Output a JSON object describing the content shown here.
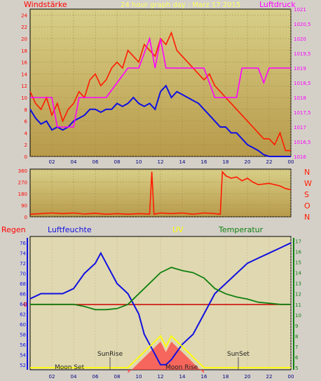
{
  "colors": {
    "frame": "#d4d0c8",
    "plot_top": "#d8cf88",
    "plot_bottom": "#b89a4a",
    "bottom_bg": "#e0d8b0",
    "wind_gust": "#ff1a00",
    "wind_avg": "#1010e0",
    "pressure": "#ff00ff",
    "direction": "#ff1a00",
    "humidity": "#1010e0",
    "temperature": "#108010",
    "uv": "#ffff00",
    "rain": "#cc0000",
    "solar": "#ff4040",
    "axis_left_top": "#ff0000",
    "axis_right_top": "#ff00ff",
    "axis_left_bottom": "#1010e0",
    "axis_right_bottom": "#108010"
  },
  "header": {
    "left_label": "Windstärke",
    "title": "24 hour graph day : Marz 17 2015",
    "right_label": "Luftdruck"
  },
  "lower_header": {
    "rain": "Regen",
    "humidity": "Luftfeuchte",
    "uv": "UV",
    "temperature": "Temperatur"
  },
  "direction_letters": [
    "N",
    "W",
    "S",
    "O",
    "N"
  ],
  "annotations": {
    "moon_set": "Moon Set",
    "sun_rise": "SunRise",
    "moon_rise": "Moon Rise",
    "sun_set": "SunSet"
  },
  "chart_data": [
    {
      "type": "line",
      "name": "wind-pressure",
      "x_ticks": [
        "02",
        "04",
        "06",
        "08",
        "10",
        "12",
        "14",
        "16",
        "18",
        "20",
        "22",
        "00"
      ],
      "y_left_ticks": [
        "0",
        "2",
        "4",
        "6",
        "8",
        "10",
        "12",
        "14",
        "16",
        "18",
        "20",
        "22",
        "24"
      ],
      "y_left_range": [
        0,
        25
      ],
      "y_right_ticks": [
        "1016",
        "1016,5",
        "1017",
        "1017,5",
        "1018",
        "1018,5",
        "1019",
        "1019,5",
        "1020",
        "1020,5",
        "1021"
      ],
      "y_right_range": [
        1016,
        1021
      ],
      "series": [
        {
          "name": "gust",
          "color": "#ff1a00",
          "points": [
            [
              0,
              11
            ],
            [
              0.5,
              9
            ],
            [
              1,
              8
            ],
            [
              1.5,
              10
            ],
            [
              2,
              7
            ],
            [
              2.5,
              9
            ],
            [
              3,
              6
            ],
            [
              3.5,
              8
            ],
            [
              4,
              9
            ],
            [
              4.5,
              11
            ],
            [
              5,
              10
            ],
            [
              5.5,
              13
            ],
            [
              6,
              14
            ],
            [
              6.5,
              12
            ],
            [
              7,
              13
            ],
            [
              7.5,
              15
            ],
            [
              8,
              16
            ],
            [
              8.5,
              15
            ],
            [
              9,
              18
            ],
            [
              9.5,
              17
            ],
            [
              10,
              16
            ],
            [
              10.5,
              19
            ],
            [
              11,
              18
            ],
            [
              11.5,
              17
            ],
            [
              12,
              20
            ],
            [
              12.5,
              19
            ],
            [
              13,
              21
            ],
            [
              13.5,
              18
            ],
            [
              14,
              17
            ],
            [
              14.5,
              16
            ],
            [
              15,
              15
            ],
            [
              15.5,
              14
            ],
            [
              16,
              13
            ],
            [
              16.5,
              14
            ],
            [
              17,
              12
            ],
            [
              17.5,
              11
            ],
            [
              18,
              10
            ],
            [
              18.5,
              9
            ],
            [
              19,
              8
            ],
            [
              19.5,
              7
            ],
            [
              20,
              6
            ],
            [
              20.5,
              5
            ],
            [
              21,
              4
            ],
            [
              21.5,
              3
            ],
            [
              22,
              3
            ],
            [
              22.5,
              2
            ],
            [
              23,
              4
            ],
            [
              23.5,
              1
            ],
            [
              24,
              1
            ]
          ]
        },
        {
          "name": "avg",
          "color": "#1010e0",
          "points": [
            [
              0,
              8
            ],
            [
              0.5,
              6.5
            ],
            [
              1,
              5.5
            ],
            [
              1.5,
              6
            ],
            [
              2,
              4.5
            ],
            [
              2.5,
              5
            ],
            [
              3,
              4.5
            ],
            [
              3.5,
              5
            ],
            [
              4,
              6
            ],
            [
              4.5,
              6.5
            ],
            [
              5,
              7
            ],
            [
              5.5,
              8
            ],
            [
              6,
              8
            ],
            [
              6.5,
              7.5
            ],
            [
              7,
              8
            ],
            [
              7.5,
              8
            ],
            [
              8,
              9
            ],
            [
              8.5,
              8.5
            ],
            [
              9,
              9
            ],
            [
              9.5,
              10
            ],
            [
              10,
              9
            ],
            [
              10.5,
              8.5
            ],
            [
              11,
              9
            ],
            [
              11.5,
              8
            ],
            [
              12,
              11
            ],
            [
              12.5,
              12
            ],
            [
              13,
              10
            ],
            [
              13.5,
              11
            ],
            [
              14,
              10.5
            ],
            [
              14.5,
              10
            ],
            [
              15,
              9.5
            ],
            [
              15.5,
              9
            ],
            [
              16,
              8
            ],
            [
              16.5,
              7
            ],
            [
              17,
              6
            ],
            [
              17.5,
              5
            ],
            [
              18,
              5
            ],
            [
              18.5,
              4
            ],
            [
              19,
              4
            ],
            [
              19.5,
              3
            ],
            [
              20,
              2
            ],
            [
              20.5,
              1.5
            ],
            [
              21,
              1
            ],
            [
              21.5,
              0.3
            ],
            [
              22,
              0
            ],
            [
              22.5,
              0
            ],
            [
              23,
              0
            ],
            [
              23.5,
              0
            ],
            [
              24,
              0
            ]
          ]
        },
        {
          "name": "pressure",
          "color": "#ff00ff",
          "points": [
            [
              0,
              1018
            ],
            [
              1,
              1018
            ],
            [
              2,
              1018
            ],
            [
              2.5,
              1017
            ],
            [
              4,
              1017
            ],
            [
              4.5,
              1018
            ],
            [
              6,
              1018
            ],
            [
              7,
              1018
            ],
            [
              8,
              1018.5
            ],
            [
              9,
              1019
            ],
            [
              10,
              1019
            ],
            [
              11,
              1020
            ],
            [
              11.5,
              1019
            ],
            [
              12,
              1020
            ],
            [
              12.5,
              1019
            ],
            [
              14,
              1019
            ],
            [
              15,
              1019
            ],
            [
              16,
              1019
            ],
            [
              17,
              1018
            ],
            [
              18,
              1018
            ],
            [
              19,
              1018
            ],
            [
              19.5,
              1019
            ],
            [
              20,
              1019
            ],
            [
              21,
              1019
            ],
            [
              21.5,
              1018.5
            ],
            [
              22,
              1019
            ],
            [
              24,
              1019
            ]
          ]
        }
      ]
    },
    {
      "type": "line",
      "name": "wind-direction",
      "y_ticks": [
        "360",
        "270",
        "180",
        "90",
        "0"
      ],
      "y_range": [
        0,
        360
      ],
      "series": [
        {
          "name": "direction",
          "color": "#ff1a00",
          "points": [
            [
              0,
              20
            ],
            [
              1,
              25
            ],
            [
              2,
              30
            ],
            [
              3,
              25
            ],
            [
              4,
              30
            ],
            [
              5,
              22
            ],
            [
              6,
              28
            ],
            [
              7,
              20
            ],
            [
              8,
              25
            ],
            [
              9,
              20
            ],
            [
              10,
              25
            ],
            [
              11,
              22
            ],
            [
              11.2,
              350
            ],
            [
              11.4,
              20
            ],
            [
              12,
              30
            ],
            [
              13,
              25
            ],
            [
              14,
              30
            ],
            [
              15,
              20
            ],
            [
              16,
              30
            ],
            [
              17,
              25
            ],
            [
              17.5,
              20
            ],
            [
              17.7,
              350
            ],
            [
              18,
              320
            ],
            [
              18.5,
              300
            ],
            [
              19,
              310
            ],
            [
              19.5,
              280
            ],
            [
              20,
              300
            ],
            [
              20.5,
              270
            ],
            [
              21,
              250
            ],
            [
              22,
              260
            ],
            [
              23,
              240
            ],
            [
              23.5,
              220
            ],
            [
              24,
              210
            ]
          ]
        }
      ]
    },
    {
      "type": "line",
      "name": "humidity-temperature-uv",
      "y_left_ticks": [
        "52",
        "54",
        "56",
        "58",
        "60",
        "62",
        "64",
        "66",
        "68",
        "70",
        "72",
        "74",
        "76"
      ],
      "y_left_range": [
        51,
        77
      ],
      "y_right_ticks": [
        "5",
        "6",
        "7",
        "8",
        "9",
        "10",
        "11",
        "12",
        "13",
        "14",
        "15",
        "16",
        "17"
      ],
      "y_right_range": [
        4.8,
        17.3
      ],
      "rain_value": "0",
      "series": [
        {
          "name": "humidity",
          "color": "#1010e0",
          "points": [
            [
              0,
              65
            ],
            [
              1,
              66
            ],
            [
              2,
              66
            ],
            [
              3,
              66
            ],
            [
              4,
              67
            ],
            [
              5,
              70
            ],
            [
              6,
              72
            ],
            [
              6.5,
              74
            ],
            [
              7,
              72
            ],
            [
              8,
              68
            ],
            [
              9,
              66
            ],
            [
              10,
              62
            ],
            [
              10.5,
              58
            ],
            [
              11,
              56
            ],
            [
              11.5,
              54
            ],
            [
              12,
              52
            ],
            [
              12.5,
              52
            ],
            [
              13,
              53
            ],
            [
              14,
              56
            ],
            [
              15,
              58
            ],
            [
              16,
              62
            ],
            [
              17,
              66
            ],
            [
              18,
              68
            ],
            [
              19,
              70
            ],
            [
              20,
              72
            ],
            [
              21,
              73
            ],
            [
              22,
              74
            ],
            [
              23,
              75
            ],
            [
              24,
              76
            ]
          ]
        },
        {
          "name": "temperature",
          "color": "#108010",
          "points": [
            [
              0,
              11
            ],
            [
              1,
              11
            ],
            [
              2,
              11
            ],
            [
              3,
              11
            ],
            [
              4,
              11
            ],
            [
              5,
              10.8
            ],
            [
              6,
              10.5
            ],
            [
              7,
              10.5
            ],
            [
              8,
              10.6
            ],
            [
              9,
              11
            ],
            [
              10,
              12
            ],
            [
              11,
              13
            ],
            [
              12,
              14
            ],
            [
              13,
              14.5
            ],
            [
              14,
              14.2
            ],
            [
              15,
              14
            ],
            [
              16,
              13.5
            ],
            [
              17,
              12.5
            ],
            [
              18,
              12
            ],
            [
              19,
              11.7
            ],
            [
              20,
              11.5
            ],
            [
              21,
              11.2
            ],
            [
              22,
              11.1
            ],
            [
              23,
              11
            ],
            [
              24,
              11
            ]
          ]
        },
        {
          "name": "uv",
          "color": "#ffff00",
          "points": [
            [
              0,
              5
            ],
            [
              5,
              5
            ],
            [
              8,
              5
            ],
            [
              9,
              5
            ],
            [
              9.5,
              5.5
            ],
            [
              10,
              6
            ],
            [
              10.5,
              6.5
            ],
            [
              11,
              7
            ],
            [
              11.5,
              7.5
            ],
            [
              12,
              8
            ],
            [
              12.5,
              7
            ],
            [
              13,
              8
            ],
            [
              13.5,
              7.5
            ],
            [
              14,
              7
            ],
            [
              14.5,
              6.5
            ],
            [
              15,
              6
            ],
            [
              15.5,
              5.5
            ],
            [
              16,
              5
            ],
            [
              17,
              5
            ],
            [
              24,
              5
            ]
          ]
        }
      ]
    }
  ]
}
